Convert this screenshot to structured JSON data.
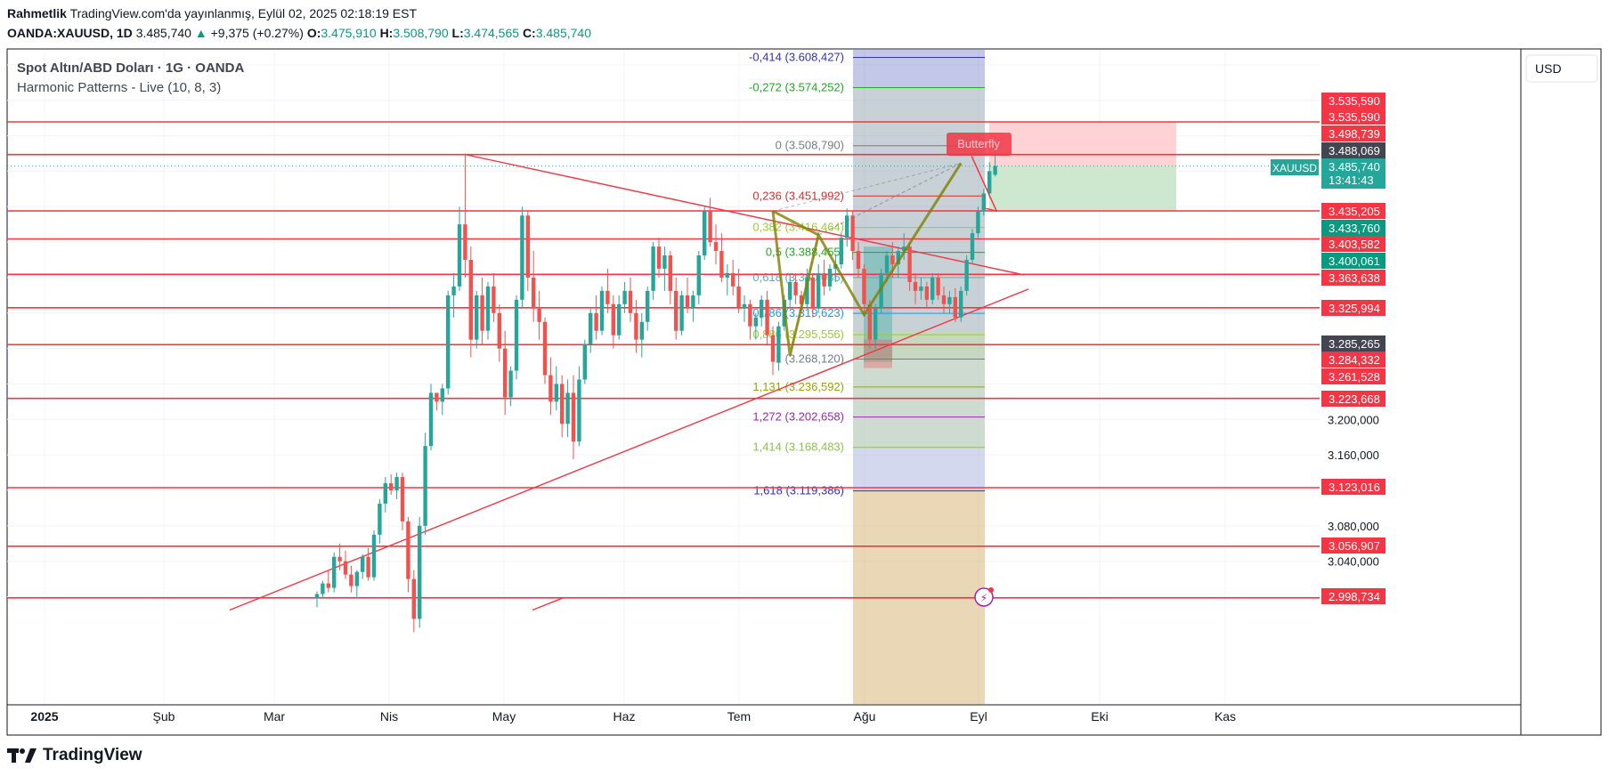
{
  "header": {
    "author": "Rahmetlik",
    "published": "TradingView.com'da yayınlanmış, Eylül 02, 2025 02:18:19 EST",
    "symbol": "OANDA:XAUUSD, 1D",
    "last": "3.485,740",
    "change": "+9,375 (+0.27%)",
    "o_label": "O:",
    "o_value": "3.475,910",
    "h_label": "H:",
    "h_value": "3.508,790",
    "l_label": "L:",
    "l_value": "3.474,565",
    "c_label": "C:",
    "c_value": "3.485,740"
  },
  "legend": {
    "instrument": "Spot Altın/ABD Doları · 1G · OANDA",
    "indicator": "Harmonic Patterns - Live (10, 8, 3)"
  },
  "currency_label": "USD",
  "symbol_tag": "XAUUSD",
  "countdown": "13:41:43",
  "pattern_label": "Butterfly",
  "logo_text": "TradingView",
  "colors": {
    "up": "#26a69a",
    "down": "#ef5350",
    "level_line": "#f23645",
    "pattern": "#808000",
    "target_green": "#c8e6c9",
    "stop_red": "#ffcdd2"
  },
  "chart_data": {
    "type": "candlestick",
    "x_ticks": [
      "2025",
      "Şub",
      "Mar",
      "Nis",
      "May",
      "Haz",
      "Tem",
      "Ağu",
      "Eyl",
      "Eki",
      "Kas"
    ],
    "y_ticks": [
      {
        "v": 3200,
        "label": "3.200,000"
      },
      {
        "v": 3160,
        "label": "3.160,000"
      },
      {
        "v": 3080,
        "label": "3.080,000"
      },
      {
        "v": 3040,
        "label": "3.040,000"
      }
    ],
    "price_tags": [
      {
        "v": 3535.59,
        "label": "3.535,590",
        "color": "#f23645"
      },
      {
        "v": 3535.59,
        "label": "3.535,590",
        "color": "#f23645"
      },
      {
        "v": 3498.739,
        "label": "3.498,739",
        "color": "#f23645"
      },
      {
        "v": 3488.069,
        "label": "3.488,069",
        "color": "#434651"
      },
      {
        "v": 3435.205,
        "label": "3.435,205",
        "color": "#f23645"
      },
      {
        "v": 3433.76,
        "label": "3.433,760",
        "color": "#089981"
      },
      {
        "v": 3403.582,
        "label": "3.403,582",
        "color": "#f23645"
      },
      {
        "v": 3400.061,
        "label": "3.400,061",
        "color": "#089981"
      },
      {
        "v": 3363.638,
        "label": "3.363,638",
        "color": "#f23645"
      },
      {
        "v": 3325.994,
        "label": "3.325,994",
        "color": "#f23645"
      },
      {
        "v": 3285.265,
        "label": "3.285,265",
        "color": "#434651"
      },
      {
        "v": 3284.332,
        "label": "3.284,332",
        "color": "#f23645"
      },
      {
        "v": 3261.528,
        "label": "3.261,528",
        "color": "#f23645"
      },
      {
        "v": 3223.668,
        "label": "3.223,668",
        "color": "#f23645"
      },
      {
        "v": 3123.016,
        "label": "3.123,016",
        "color": "#f23645"
      },
      {
        "v": 3056.907,
        "label": "3.056,907",
        "color": "#f23645"
      },
      {
        "v": 2998.734,
        "label": "2.998,734",
        "color": "#f23645"
      }
    ],
    "last_price": {
      "v": 3485.74,
      "label": "3.485,740"
    },
    "support_resistance": [
      3535.59,
      3498.739,
      3435.205,
      3403.582,
      3363.638,
      3325.994,
      3284.332,
      3223.668,
      3123.016,
      3056.907,
      2998.734
    ],
    "fib_levels": [
      {
        "v": 3608.427,
        "label": "-0,414 (3.608,427)",
        "color": "#3131c4"
      },
      {
        "v": 3574.252,
        "label": "-0,272 (3.574,252)",
        "color": "#22a822"
      },
      {
        "v": 3508.79,
        "label": "0 (3.508,790)",
        "color": "#787b86"
      },
      {
        "v": 3451.992,
        "label": "0,236 (3.451,992)",
        "color": "#d32f2f"
      },
      {
        "v": 3416.464,
        "label": "0,382 (3.416,464)",
        "color": "#9acd32"
      },
      {
        "v": 3388.455,
        "label": "0,5 (3.388,455)",
        "color": "#22a822"
      },
      {
        "v": 3360.035,
        "label": "0,618 (3.360,035)",
        "color": "#4db6ac"
      },
      {
        "v": 3319.623,
        "label": "0,786 (3.319,623)",
        "color": "#2196f3"
      },
      {
        "v": 3295.556,
        "label": "0,886 (3.295,556)",
        "color": "#9acd32"
      },
      {
        "v": 3268.12,
        "label": "1 (3.268,120)",
        "color": "#787b86"
      },
      {
        "v": 3236.592,
        "label": "1,131 (3.236,592)",
        "color": "#9aa30a"
      },
      {
        "v": 3202.658,
        "label": "1,272 (3.202,658)",
        "color": "#9c27b0"
      },
      {
        "v": 3168.483,
        "label": "1,414 (3.168,483)",
        "color": "#8bc34a"
      },
      {
        "v": 3119.386,
        "label": "1,618 (3.119,386)",
        "color": "#3131c4"
      }
    ],
    "ylim": [
      2985,
      3625
    ],
    "candles": [
      [
        2998,
        3006,
        2988,
        3003
      ],
      [
        3003,
        3018,
        2998,
        3015
      ],
      [
        3015,
        3030,
        3005,
        3010
      ],
      [
        3010,
        3050,
        3005,
        3045
      ],
      [
        3045,
        3060,
        3030,
        3040
      ],
      [
        3040,
        3052,
        3020,
        3025
      ],
      [
        3025,
        3035,
        3005,
        3012
      ],
      [
        3012,
        3030,
        3000,
        3028
      ],
      [
        3028,
        3048,
        3020,
        3045
      ],
      [
        3045,
        3055,
        3018,
        3022
      ],
      [
        3022,
        3075,
        3018,
        3070
      ],
      [
        3070,
        3110,
        3060,
        3105
      ],
      [
        3105,
        3135,
        3095,
        3128
      ],
      [
        3128,
        3138,
        3115,
        3120
      ],
      [
        3120,
        3140,
        3110,
        3135
      ],
      [
        3135,
        3140,
        3075,
        3085
      ],
      [
        3085,
        3090,
        3005,
        3020
      ],
      [
        3020,
        3030,
        2960,
        2975
      ],
      [
        2975,
        3090,
        2965,
        3080
      ],
      [
        3080,
        3185,
        3070,
        3170
      ],
      [
        3170,
        3240,
        3165,
        3230
      ],
      [
        3230,
        3225,
        3210,
        3220
      ],
      [
        3220,
        3240,
        3205,
        3235
      ],
      [
        3235,
        3345,
        3228,
        3340
      ],
      [
        3340,
        3365,
        3315,
        3350
      ],
      [
        3350,
        3440,
        3345,
        3420
      ],
      [
        3420,
        3500,
        3360,
        3380
      ],
      [
        3380,
        3395,
        3270,
        3290
      ],
      [
        3290,
        3345,
        3280,
        3340
      ],
      [
        3340,
        3360,
        3285,
        3300
      ],
      [
        3300,
        3355,
        3290,
        3350
      ],
      [
        3350,
        3365,
        3310,
        3320
      ],
      [
        3320,
        3330,
        3265,
        3280
      ],
      [
        3280,
        3300,
        3205,
        3225
      ],
      [
        3225,
        3260,
        3215,
        3255
      ],
      [
        3255,
        3340,
        3245,
        3335
      ],
      [
        3335,
        3440,
        3325,
        3430
      ],
      [
        3430,
        3435,
        3345,
        3360
      ],
      [
        3360,
        3390,
        3310,
        3325
      ],
      [
        3325,
        3345,
        3290,
        3310
      ],
      [
        3310,
        3315,
        3240,
        3250
      ],
      [
        3250,
        3270,
        3205,
        3220
      ],
      [
        3220,
        3260,
        3210,
        3240
      ],
      [
        3240,
        3250,
        3180,
        3195
      ],
      [
        3195,
        3245,
        3180,
        3230
      ],
      [
        3230,
        3250,
        3155,
        3175
      ],
      [
        3175,
        3260,
        3170,
        3245
      ],
      [
        3245,
        3290,
        3240,
        3285
      ],
      [
        3285,
        3325,
        3275,
        3320
      ],
      [
        3320,
        3340,
        3290,
        3300
      ],
      [
        3300,
        3350,
        3295,
        3345
      ],
      [
        3345,
        3370,
        3320,
        3330
      ],
      [
        3330,
        3340,
        3280,
        3295
      ],
      [
        3295,
        3340,
        3290,
        3330
      ],
      [
        3330,
        3355,
        3320,
        3345
      ],
      [
        3345,
        3360,
        3310,
        3320
      ],
      [
        3320,
        3335,
        3275,
        3290
      ],
      [
        3290,
        3320,
        3270,
        3310
      ],
      [
        3310,
        3350,
        3300,
        3345
      ],
      [
        3345,
        3400,
        3335,
        3395
      ],
      [
        3395,
        3405,
        3360,
        3370
      ],
      [
        3370,
        3395,
        3345,
        3385
      ],
      [
        3385,
        3390,
        3330,
        3345
      ],
      [
        3345,
        3360,
        3290,
        3300
      ],
      [
        3300,
        3345,
        3295,
        3340
      ],
      [
        3340,
        3360,
        3320,
        3325
      ],
      [
        3325,
        3345,
        3310,
        3340
      ],
      [
        3340,
        3390,
        3330,
        3385
      ],
      [
        3385,
        3440,
        3380,
        3435
      ],
      [
        3435,
        3450,
        3395,
        3400
      ],
      [
        3400,
        3420,
        3375,
        3390
      ],
      [
        3390,
        3410,
        3355,
        3360
      ],
      [
        3360,
        3375,
        3340,
        3365
      ],
      [
        3365,
        3380,
        3340,
        3350
      ],
      [
        3350,
        3370,
        3320,
        3325
      ],
      [
        3325,
        3340,
        3310,
        3330
      ],
      [
        3330,
        3335,
        3290,
        3305
      ],
      [
        3305,
        3320,
        3290,
        3315
      ],
      [
        3315,
        3340,
        3305,
        3335
      ],
      [
        3335,
        3345,
        3285,
        3295
      ],
      [
        3295,
        3305,
        3250,
        3265
      ],
      [
        3265,
        3310,
        3255,
        3305
      ],
      [
        3305,
        3340,
        3300,
        3335
      ],
      [
        3335,
        3365,
        3325,
        3355
      ],
      [
        3355,
        3365,
        3330,
        3340
      ],
      [
        3340,
        3345,
        3320,
        3330
      ],
      [
        3330,
        3370,
        3325,
        3360
      ],
      [
        3360,
        3365,
        3315,
        3325
      ],
      [
        3325,
        3375,
        3320,
        3365
      ],
      [
        3365,
        3380,
        3340,
        3350
      ],
      [
        3350,
        3375,
        3345,
        3370
      ],
      [
        3370,
        3385,
        3355,
        3375
      ],
      [
        3375,
        3410,
        3370,
        3405
      ],
      [
        3405,
        3438,
        3395,
        3430
      ],
      [
        3430,
        3435,
        3380,
        3390
      ],
      [
        3390,
        3400,
        3360,
        3370
      ],
      [
        3370,
        3375,
        3320,
        3330
      ],
      [
        3330,
        3335,
        3280,
        3290
      ],
      [
        3290,
        3330,
        3280,
        3325
      ],
      [
        3325,
        3370,
        3320,
        3365
      ],
      [
        3365,
        3390,
        3355,
        3385
      ],
      [
        3385,
        3400,
        3360,
        3375
      ],
      [
        3375,
        3395,
        3360,
        3390
      ],
      [
        3390,
        3410,
        3380,
        3395
      ],
      [
        3395,
        3400,
        3345,
        3355
      ],
      [
        3355,
        3365,
        3330,
        3345
      ],
      [
        3345,
        3360,
        3335,
        3350
      ],
      [
        3350,
        3355,
        3325,
        3335
      ],
      [
        3335,
        3365,
        3330,
        3360
      ],
      [
        3360,
        3365,
        3335,
        3340
      ],
      [
        3340,
        3350,
        3320,
        3330
      ],
      [
        3330,
        3345,
        3320,
        3338
      ],
      [
        3338,
        3348,
        3310,
        3315
      ],
      [
        3315,
        3350,
        3310,
        3345
      ],
      [
        3345,
        3385,
        3340,
        3380
      ],
      [
        3380,
        3415,
        3375,
        3410
      ],
      [
        3410,
        3440,
        3405,
        3435
      ],
      [
        3435,
        3460,
        3430,
        3455
      ],
      [
        3455,
        3490,
        3450,
        3480
      ],
      [
        3476,
        3509,
        3474,
        3486
      ]
    ],
    "pattern_points": {
      "X": [
        80,
        3435
      ],
      "A": [
        83,
        3272
      ],
      "B": [
        88,
        3408
      ],
      "C": [
        96,
        3318
      ],
      "D": [
        113,
        3489
      ]
    }
  }
}
